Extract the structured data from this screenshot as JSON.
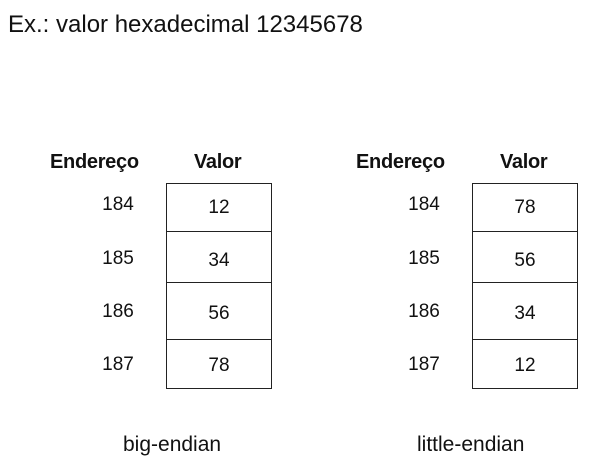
{
  "title": "Ex.: valor hexadecimal 12345678",
  "tables": [
    {
      "address_header": "Endereço",
      "value_header": "Valor",
      "rows": [
        {
          "address": "184",
          "value": "12"
        },
        {
          "address": "185",
          "value": "34"
        },
        {
          "address": "186",
          "value": "56"
        },
        {
          "address": "187",
          "value": "78"
        }
      ],
      "caption": "big-endian"
    },
    {
      "address_header": "Endereço",
      "value_header": "Valor",
      "rows": [
        {
          "address": "184",
          "value": "78"
        },
        {
          "address": "185",
          "value": "56"
        },
        {
          "address": "186",
          "value": "34"
        },
        {
          "address": "187",
          "value": "12"
        }
      ],
      "caption": "little-endian"
    }
  ]
}
